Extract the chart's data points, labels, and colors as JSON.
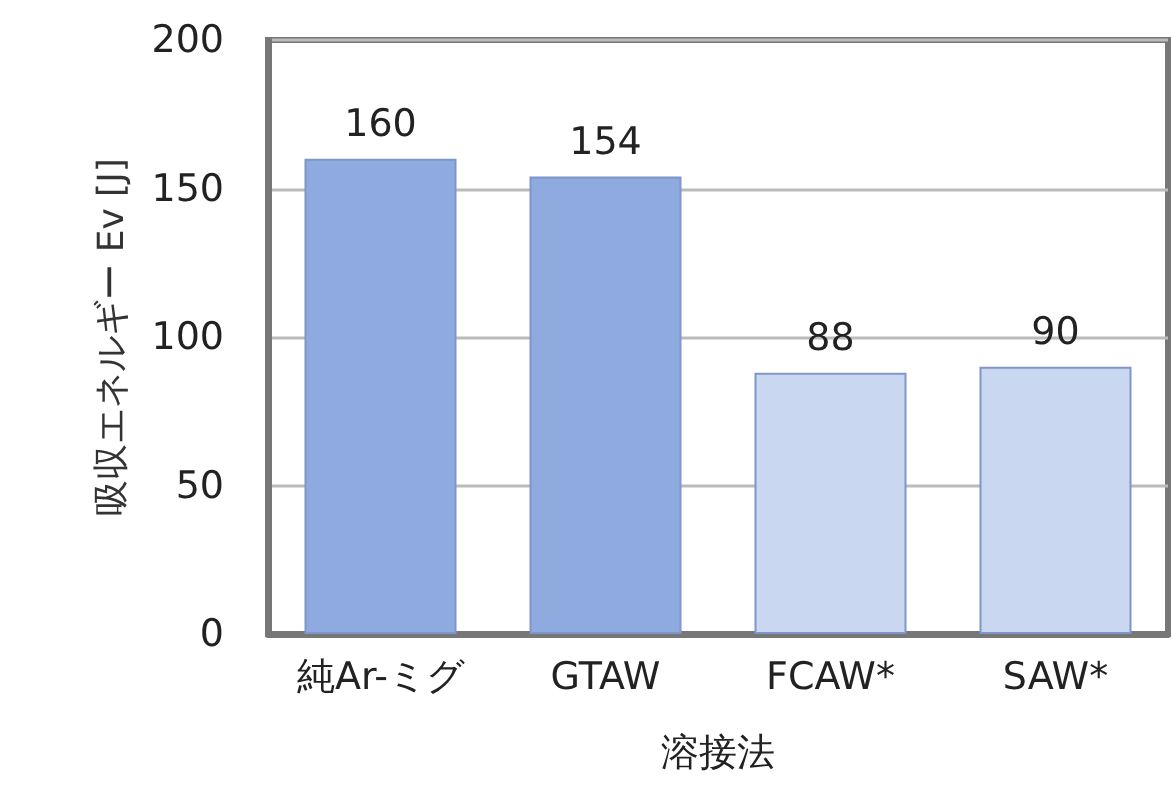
{
  "chart_data": {
    "type": "bar",
    "xlabel": "溶接法",
    "ylabel": "吸収エネルギー Ev [J]",
    "categories": [
      "純Ar-ミグ",
      "GTAW",
      "FCAW*",
      "SAW*"
    ],
    "values": [
      160,
      154,
      88,
      90
    ],
    "colors": [
      "#8eaadf",
      "#8eaadf",
      "#c9d7f1",
      "#c9d7f1"
    ],
    "ylim": [
      0,
      200
    ],
    "yticks": [
      0,
      50,
      100,
      150,
      200
    ],
    "grid": "y",
    "data_labels": true
  }
}
